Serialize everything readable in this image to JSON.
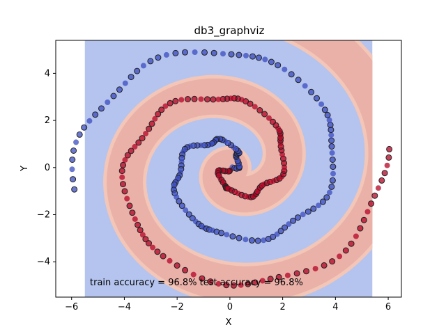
{
  "chart_data": {
    "type": "scatter",
    "title": "db3_graphviz",
    "xlabel": "X",
    "ylabel": "Y",
    "xlim": [
      -6.6,
      6.5
    ],
    "ylim": [
      -5.5,
      5.4
    ],
    "decision_region_xlim": [
      -5.5,
      5.4
    ],
    "xticks": [
      -6,
      -4,
      -2,
      0,
      2,
      4,
      6
    ],
    "xtick_labels": [
      "−6",
      "−4",
      "−2",
      "0",
      "2",
      "4",
      "6"
    ],
    "yticks": [
      -4,
      -2,
      0,
      2,
      4
    ],
    "ytick_labels": [
      "−4",
      "−2",
      "0",
      "2",
      "4"
    ],
    "grid": false,
    "series": [
      {
        "color": "#3b4cc0",
        "region_color": "#b4c4ee",
        "spiral_start_angle_deg": 0
      },
      {
        "color": "#b40426",
        "region_color": "#eab1a9",
        "spiral_start_angle_deg": 180
      }
    ],
    "spiral": {
      "turns_max_radius": 5.9,
      "max_angle_deg": 540
    },
    "annotation": "train accuracy = 96.8%  test accuracy = 96.8%",
    "train_accuracy": 96.8,
    "test_accuracy": 96.8
  }
}
